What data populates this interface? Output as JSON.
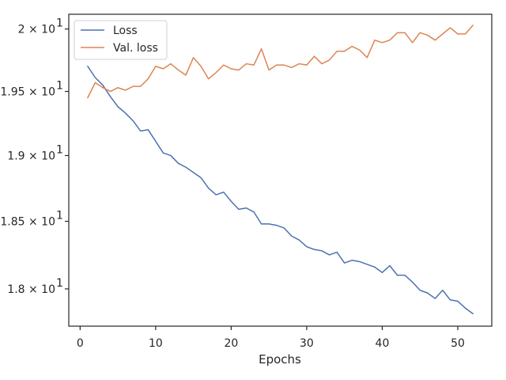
{
  "chart_data": {
    "type": "line",
    "title": "",
    "xlabel": "Epochs",
    "ylabel": "",
    "xlim": [
      -1.5,
      54.5
    ],
    "ylim": [
      17.73,
      20.12
    ],
    "yscale": "log",
    "grid": false,
    "legend_position": "top-left",
    "x_ticks": [
      0,
      10,
      20,
      30,
      40,
      50
    ],
    "x_tick_labels": [
      "0",
      "10",
      "20",
      "30",
      "40",
      "50"
    ],
    "y_ticks": [
      18.0,
      18.5,
      19.0,
      19.5,
      20.0
    ],
    "y_tick_labels": [
      "1.8 × 10",
      "1.85 × 10",
      "1.9 × 10",
      "1.95 × 10",
      "2 × 10"
    ],
    "y_tick_exponent": "1",
    "x": [
      1,
      2,
      3,
      4,
      5,
      6,
      7,
      8,
      9,
      10,
      11,
      12,
      13,
      14,
      15,
      16,
      17,
      18,
      19,
      20,
      21,
      22,
      23,
      24,
      25,
      26,
      27,
      28,
      29,
      30,
      31,
      32,
      33,
      34,
      35,
      36,
      37,
      38,
      39,
      40,
      41,
      42,
      43,
      44,
      45,
      46,
      47,
      48,
      49,
      50,
      51,
      52
    ],
    "series": [
      {
        "name": "Loss",
        "color": "#4c72b0",
        "values": [
          19.7,
          19.61,
          19.55,
          19.46,
          19.38,
          19.33,
          19.27,
          19.19,
          19.2,
          19.11,
          19.02,
          19.0,
          18.94,
          18.91,
          18.87,
          18.83,
          18.75,
          18.7,
          18.72,
          18.65,
          18.59,
          18.6,
          18.57,
          18.48,
          18.48,
          18.47,
          18.45,
          18.39,
          18.36,
          18.31,
          18.29,
          18.28,
          18.25,
          18.27,
          18.19,
          18.21,
          18.2,
          18.18,
          18.16,
          18.12,
          18.17,
          18.1,
          18.1,
          18.05,
          17.99,
          17.97,
          17.93,
          17.99,
          17.92,
          17.91,
          17.86,
          17.82
        ]
      },
      {
        "name": "Val. loss",
        "color": "#dd8452",
        "values": [
          19.45,
          19.57,
          19.53,
          19.5,
          19.53,
          19.51,
          19.54,
          19.54,
          19.6,
          19.7,
          19.68,
          19.72,
          19.67,
          19.63,
          19.77,
          19.7,
          19.6,
          19.65,
          19.71,
          19.68,
          19.67,
          19.72,
          19.71,
          19.84,
          19.67,
          19.71,
          19.71,
          19.69,
          19.72,
          19.71,
          19.78,
          19.72,
          19.75,
          19.82,
          19.82,
          19.86,
          19.83,
          19.77,
          19.91,
          19.89,
          19.91,
          19.97,
          19.97,
          19.89,
          19.97,
          19.95,
          19.91,
          19.96,
          20.01,
          19.96,
          19.96,
          20.03
        ]
      }
    ]
  }
}
